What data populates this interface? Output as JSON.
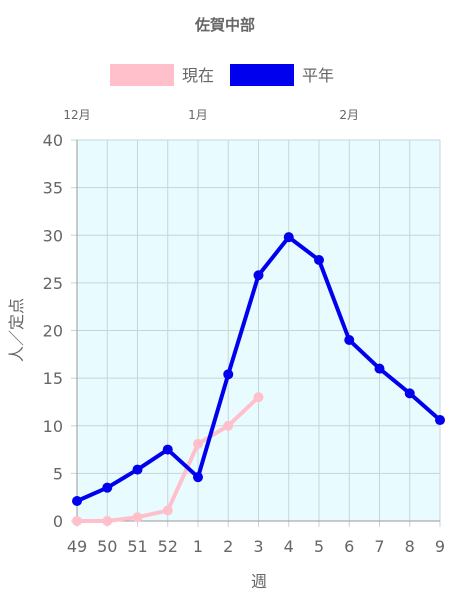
{
  "chart_data": {
    "type": "line",
    "title": "佐賀中部",
    "xlabel": "週",
    "ylabel": "人／定点",
    "ylim": [
      0,
      40
    ],
    "yticks": [
      0,
      5,
      10,
      15,
      20,
      25,
      30,
      35,
      40
    ],
    "categories": [
      "49",
      "50",
      "51",
      "52",
      "1",
      "2",
      "3",
      "4",
      "5",
      "6",
      "7",
      "8",
      "9"
    ],
    "month_labels": [
      {
        "label": "12月",
        "category": "49"
      },
      {
        "label": "1月",
        "category": "1"
      },
      {
        "label": "2月",
        "category": "6"
      }
    ],
    "plot_background": "#e8fcff",
    "grid": true,
    "legend_position": "top",
    "series": [
      {
        "name": "現在",
        "color": "#ffc0cb",
        "values": [
          0.0,
          0.0,
          0.4,
          1.1,
          8.1,
          10.0,
          13.0,
          null,
          null,
          null,
          null,
          null,
          null
        ]
      },
      {
        "name": "平年",
        "color": "#0000ee",
        "values": [
          2.1,
          3.5,
          5.4,
          7.5,
          4.6,
          15.4,
          25.8,
          29.8,
          27.4,
          19.0,
          16.0,
          13.4,
          10.6
        ]
      }
    ]
  }
}
